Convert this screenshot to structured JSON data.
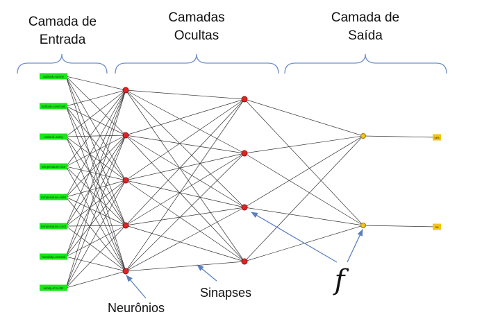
{
  "headers": {
    "input": [
      "Camada de",
      "Entrada"
    ],
    "hidden": [
      "Camadas",
      "Ocultas"
    ],
    "output": [
      "Camada de",
      "Saída"
    ]
  },
  "input_nodes": [
    "outlook=sunny",
    "outlook=overcast",
    "outlook=rainy",
    "temperature=hot",
    "temperature=mild",
    "temperature=cool",
    "humidity=normal",
    "windy=FALSE"
  ],
  "output_nodes": [
    "yes",
    "no"
  ],
  "annotations": {
    "neurons": "Neurônios",
    "synapses": "Sinapses",
    "function": "f"
  },
  "colors": {
    "input_fill": "#19e619",
    "hidden_fill": "#e02424",
    "output_fill": "#f2c418",
    "edge": "#333333",
    "bracket": "#6e8fc8",
    "arrow": "#5a7fbf",
    "text": "#111111"
  }
}
